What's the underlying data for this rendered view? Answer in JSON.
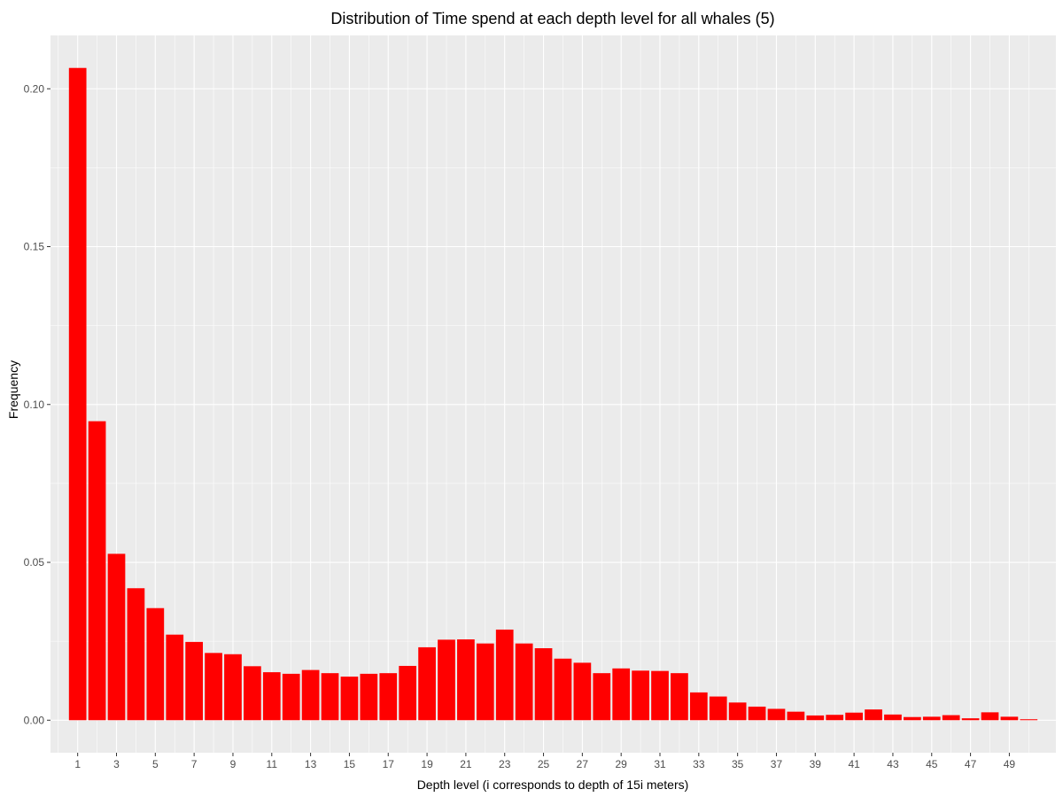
{
  "chart_data": {
    "type": "bar",
    "title": "Distribution of Time spend at each depth level for all whales (5)",
    "xlabel": "Depth level (i corresponds to depth of 15i meters)",
    "ylabel": "Frequency",
    "categories": [
      1,
      2,
      3,
      4,
      5,
      6,
      7,
      8,
      9,
      10,
      11,
      12,
      13,
      14,
      15,
      16,
      17,
      18,
      19,
      20,
      21,
      22,
      23,
      24,
      25,
      26,
      27,
      28,
      29,
      30,
      31,
      32,
      33,
      34,
      35,
      36,
      37,
      38,
      39,
      40,
      41,
      42,
      43,
      44,
      45,
      46,
      47,
      48,
      49,
      50
    ],
    "x_tick_labels": [
      "1",
      "3",
      "5",
      "7",
      "9",
      "11",
      "13",
      "15",
      "17",
      "19",
      "21",
      "23",
      "25",
      "27",
      "29",
      "31",
      "33",
      "35",
      "37",
      "39",
      "41",
      "43",
      "45",
      "47",
      "49"
    ],
    "values": [
      0.2066,
      0.0947,
      0.0527,
      0.0418,
      0.0355,
      0.0271,
      0.0248,
      0.0213,
      0.0209,
      0.0171,
      0.0152,
      0.0147,
      0.0159,
      0.0149,
      0.0138,
      0.0147,
      0.0149,
      0.0172,
      0.0231,
      0.0255,
      0.0256,
      0.0243,
      0.0287,
      0.0243,
      0.0228,
      0.0195,
      0.0182,
      0.0149,
      0.0164,
      0.0157,
      0.0156,
      0.0149,
      0.0088,
      0.0075,
      0.0056,
      0.0043,
      0.0036,
      0.0027,
      0.0015,
      0.0017,
      0.0024,
      0.0034,
      0.0018,
      0.001,
      0.0011,
      0.0016,
      0.0006,
      0.0025,
      0.0011,
      0.0003
    ],
    "y_ticks": [
      "0.00",
      "0.05",
      "0.10",
      "0.15",
      "0.20"
    ],
    "ylim": [
      -0.0103,
      0.2169
    ],
    "xlim": [
      -0.4,
      51.4
    ],
    "bar_color": "#ff0000",
    "panel_background": "#ebebeb",
    "grid_color": "#ffffff",
    "grid": true,
    "legend": "none"
  }
}
